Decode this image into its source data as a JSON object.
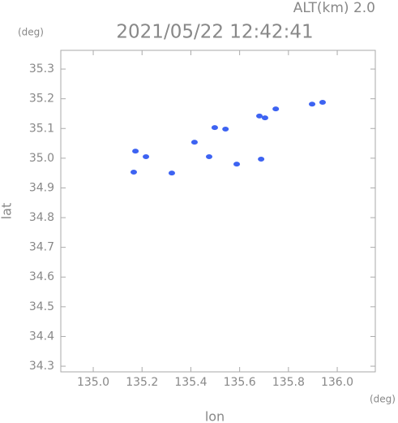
{
  "chart_data": {
    "type": "scatter",
    "title": "2021/05/22 12:42:41",
    "subtitle": "ALT(km) 2.0",
    "x_label": "lon",
    "y_label": "lat",
    "x_unit": "(deg)",
    "y_unit": "(deg)",
    "xlim": [
      134.867,
      136.156
    ],
    "ylim": [
      34.281,
      35.363
    ],
    "xticks": [
      {
        "value": 135.0,
        "label": "135.0"
      },
      135.2,
      135.4,
      135.6,
      135.8,
      {
        "value": 136.0,
        "label": "136.0"
      }
    ],
    "yticks": [
      34.3,
      34.4,
      34.5,
      34.6,
      34.7,
      34.8,
      34.9,
      {
        "value": 35.0,
        "label": "35.0"
      },
      35.1,
      35.2,
      35.3
    ],
    "color": "#3d63f2",
    "x": [
      135.166,
      135.173,
      135.216,
      135.322,
      135.415,
      135.475,
      135.498,
      135.542,
      135.588,
      135.688,
      135.681,
      135.704,
      135.748,
      135.897,
      135.94
    ],
    "values": [
      34.953,
      35.024,
      35.005,
      34.95,
      35.054,
      35.005,
      35.103,
      35.098,
      34.98,
      34.997,
      35.142,
      35.136,
      35.166,
      35.182,
      35.188
    ]
  }
}
